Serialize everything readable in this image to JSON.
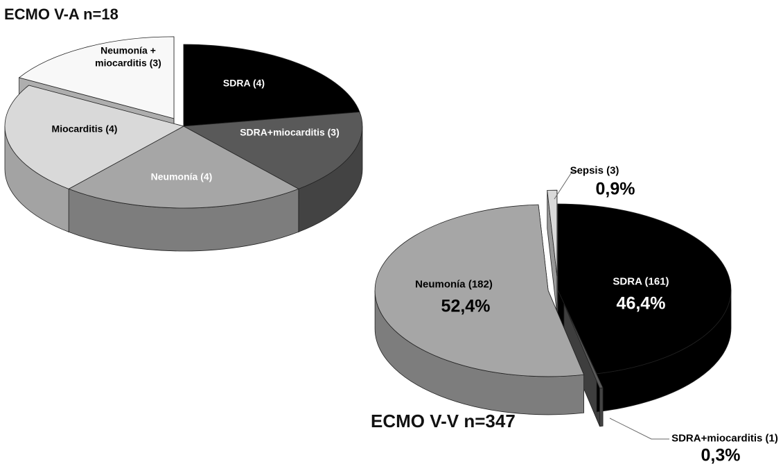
{
  "chart_data": [
    {
      "type": "pie",
      "title": "ECMO V-A n=18",
      "categories": [
        "SDRA (4)",
        "SDRA+miocarditis (3)",
        "Neumonía (4)",
        "Miocarditis (4)",
        "Neumonía + miocarditis (3)"
      ],
      "values": [
        4,
        3,
        4,
        4,
        3
      ],
      "colors": [
        "#000000",
        "#595959",
        "#a6a6a6",
        "#d9d9d9",
        "#f8f8f8"
      ]
    },
    {
      "type": "pie",
      "title": "ECMO V-V n=347",
      "categories": [
        "SDRA (161)",
        "SDRA+miocarditis (1)",
        "Neumonía (182)",
        "Sepsis (3)"
      ],
      "values": [
        46.4,
        0.3,
        52.4,
        0.9
      ],
      "value_labels": [
        "46,4%",
        "0,3%",
        "52,4%",
        "0,9%"
      ],
      "colors": [
        "#000000",
        "#595959",
        "#a6a6a6",
        "#d9d9d9"
      ]
    }
  ]
}
